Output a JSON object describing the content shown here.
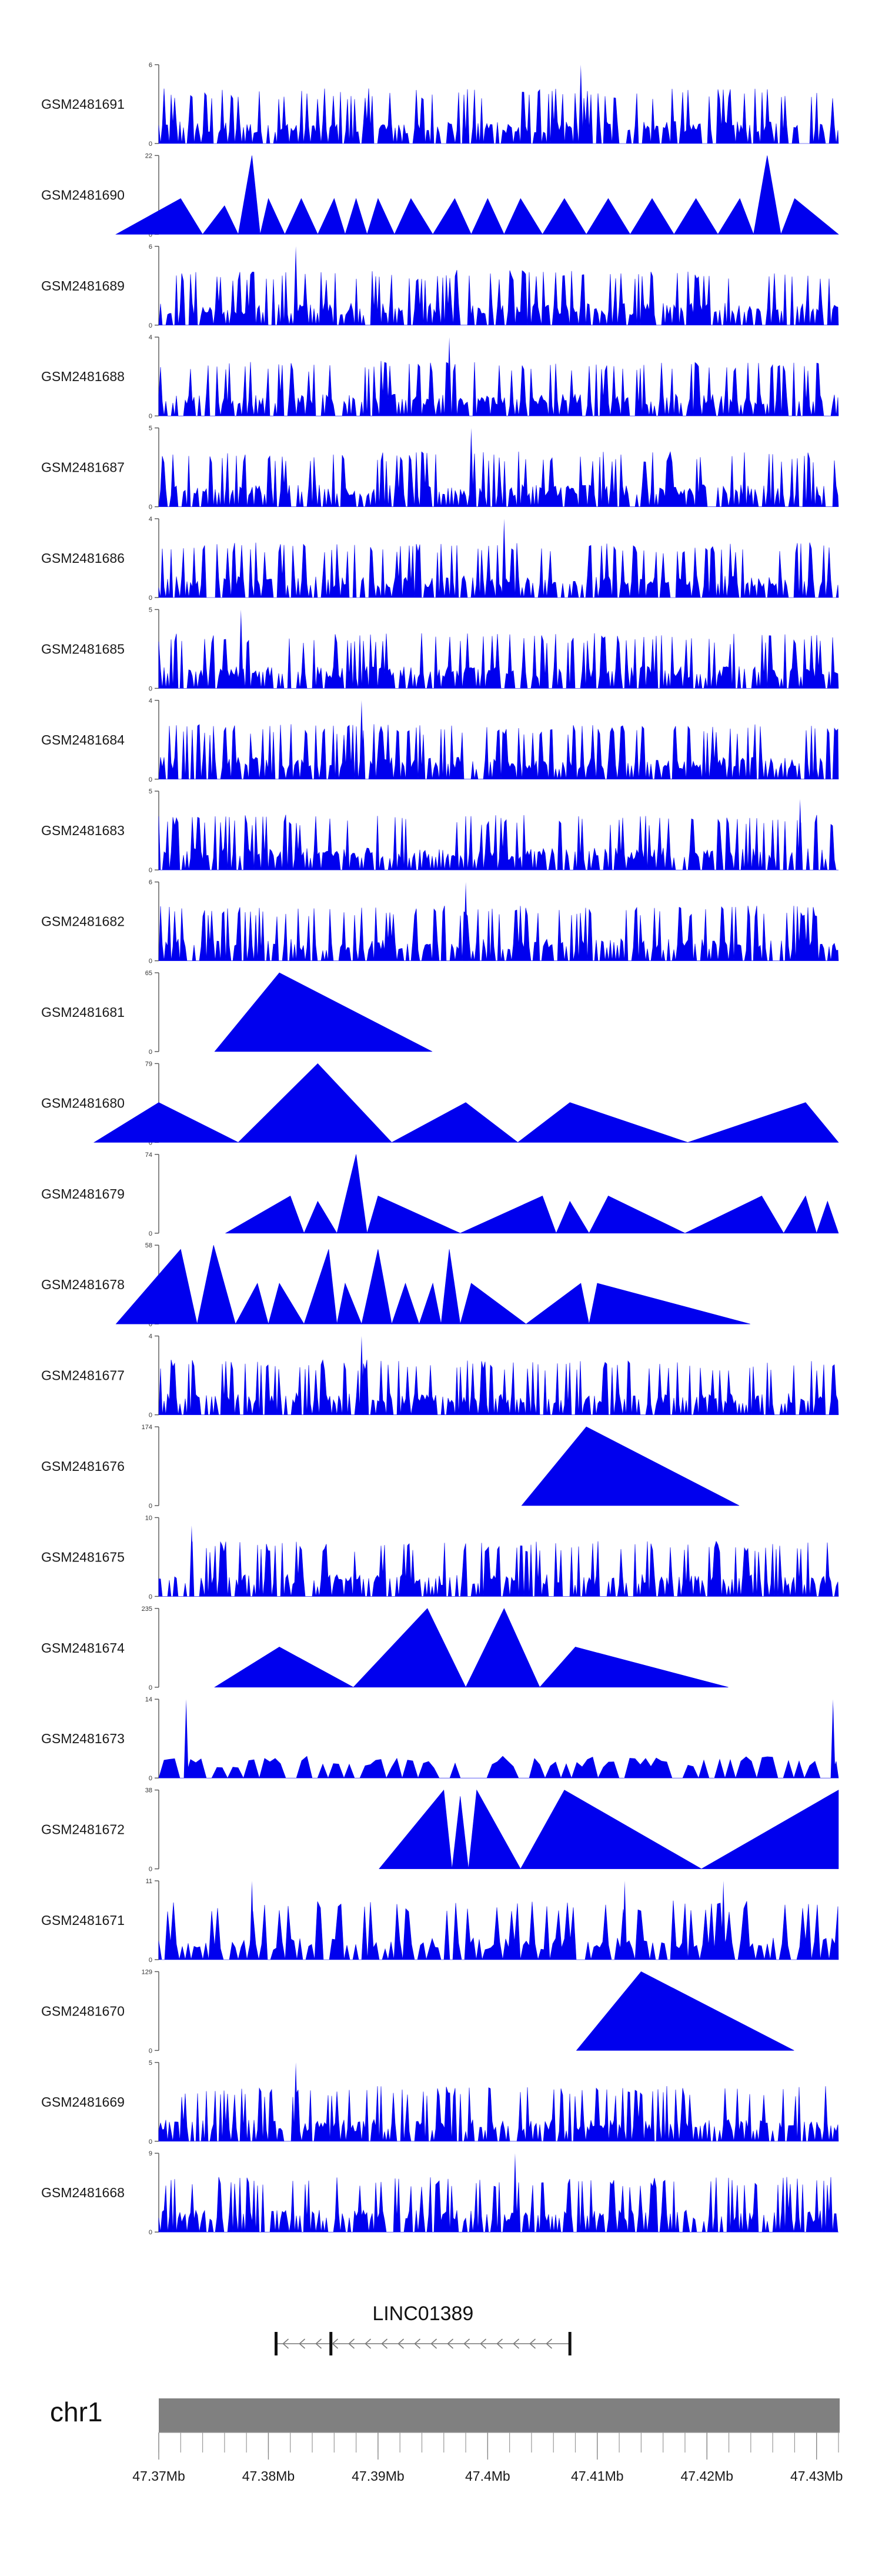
{
  "chart_data": {
    "type": "area",
    "fill_color": "#0000ee",
    "region": {
      "chrom": "chr1",
      "start": 47370000,
      "end": 47432000
    },
    "series": [
      {
        "name": "GSM2481691",
        "ymax": 6,
        "profile": "dense",
        "x": [
          47408500
        ],
        "values": [
          6
        ]
      },
      {
        "name": "GSM2481690",
        "ymax": 22,
        "profile": "triangles",
        "x": [
          47372000,
          47376000,
          47378500,
          47380000,
          47383000,
          47386000,
          47388000,
          47390000,
          47393000,
          47397000,
          47400000,
          47403000,
          47407000,
          47411000,
          47415000,
          47419000,
          47423000,
          47425500,
          47428000
        ],
        "values": [
          10,
          8,
          22,
          10,
          10,
          10,
          10,
          10,
          10,
          10,
          10,
          10,
          10,
          10,
          10,
          10,
          10,
          22,
          10
        ]
      },
      {
        "name": "GSM2481689",
        "ymax": 6,
        "profile": "dense",
        "x": [
          47382500
        ],
        "values": [
          6
        ]
      },
      {
        "name": "GSM2481688",
        "ymax": 4,
        "profile": "dense",
        "x": [
          47396500
        ],
        "values": [
          4
        ]
      },
      {
        "name": "GSM2481687",
        "ymax": 5,
        "profile": "dense",
        "x": [
          47398500
        ],
        "values": [
          5
        ]
      },
      {
        "name": "GSM2481686",
        "ymax": 4,
        "profile": "dense",
        "x": [
          47401500
        ],
        "values": [
          4
        ]
      },
      {
        "name": "GSM2481685",
        "ymax": 5,
        "profile": "dense",
        "x": [
          47377500
        ],
        "values": [
          5
        ]
      },
      {
        "name": "GSM2481684",
        "ymax": 4,
        "profile": "dense",
        "x": [
          47388500
        ],
        "values": [
          4
        ]
      },
      {
        "name": "GSM2481683",
        "ymax": 5,
        "profile": "dense",
        "x": [
          47428500
        ],
        "values": [
          4.5
        ]
      },
      {
        "name": "GSM2481682",
        "ymax": 6,
        "profile": "dense",
        "x": [
          47398000
        ],
        "values": [
          6
        ]
      },
      {
        "name": "GSM2481681",
        "ymax": 65,
        "profile": "triangles",
        "x": [
          47381000
        ],
        "values": [
          65
        ]
      },
      {
        "name": "GSM2481680",
        "ymax": 79,
        "profile": "triangles",
        "x": [
          47370000,
          47384500,
          47398000,
          47407500,
          47429000
        ],
        "values": [
          40,
          79,
          40,
          40,
          40
        ]
      },
      {
        "name": "GSM2481679",
        "ymax": 74,
        "profile": "triangles",
        "x": [
          47382000,
          47384500,
          47388000,
          47390000,
          47405000,
          47407500,
          47411000,
          47425000,
          47429000,
          47431000
        ],
        "values": [
          35,
          30,
          74,
          35,
          35,
          30,
          35,
          35,
          35,
          30
        ]
      },
      {
        "name": "GSM2481678",
        "ymax": 58,
        "profile": "triangles",
        "x": [
          47372000,
          47375000,
          47379000,
          47381000,
          47385500,
          47387000,
          47390000,
          47392500,
          47395000,
          47396500,
          47398500,
          47408500,
          47410000
        ],
        "values": [
          55,
          58,
          30,
          30,
          55,
          30,
          55,
          30,
          30,
          55,
          30,
          30,
          30
        ]
      },
      {
        "name": "GSM2481677",
        "ymax": 4,
        "profile": "dense",
        "x": [
          47388500
        ],
        "values": [
          4
        ]
      },
      {
        "name": "GSM2481676",
        "ymax": 174,
        "profile": "triangles",
        "x": [
          47409000
        ],
        "values": [
          174
        ]
      },
      {
        "name": "GSM2481675",
        "ymax": 10,
        "profile": "dense",
        "x": [
          47373000
        ],
        "values": [
          9
        ]
      },
      {
        "name": "GSM2481674",
        "ymax": 235,
        "profile": "triangles",
        "x": [
          47381000,
          47394500,
          47401500,
          47408000
        ],
        "values": [
          120,
          235,
          235,
          120
        ]
      },
      {
        "name": "GSM2481673",
        "ymax": 14,
        "profile": "sparse",
        "x": [
          47372500,
          47431500
        ],
        "values": [
          14,
          14
        ]
      },
      {
        "name": "GSM2481672",
        "ymax": 38,
        "profile": "triangles",
        "x": [
          47396000,
          47397500,
          47399000,
          47407000,
          47432000
        ],
        "values": [
          38,
          35,
          38,
          38,
          38
        ]
      },
      {
        "name": "GSM2481671",
        "ymax": 11,
        "profile": "spiky",
        "x": [
          47378500,
          47412500,
          47421500
        ],
        "values": [
          11,
          11,
          11
        ]
      },
      {
        "name": "GSM2481670",
        "ymax": 129,
        "profile": "triangles",
        "x": [
          47414000
        ],
        "values": [
          129
        ]
      },
      {
        "name": "GSM2481669",
        "ymax": 5,
        "profile": "dense",
        "x": [
          47382500
        ],
        "values": [
          5
        ]
      },
      {
        "name": "GSM2481668",
        "ymax": 9,
        "profile": "dense",
        "x": [
          47402500
        ],
        "values": [
          9
        ]
      }
    ],
    "gene": {
      "name": "LINC01389",
      "start": 47380700,
      "end": 47407500,
      "exons": [
        47380700,
        47385700,
        47407500
      ],
      "strand": "-"
    },
    "axis": {
      "chrom": "chr1",
      "ticks": [
        47370000,
        47380000,
        47390000,
        47400000,
        47410000,
        47420000,
        47430000
      ],
      "tick_labels": [
        "47.37Mb",
        "47.38Mb",
        "47.39Mb",
        "47.4Mb",
        "47.41Mb",
        "47.42Mb",
        "47.43Mb"
      ],
      "minor_tick_step": 2000
    }
  }
}
